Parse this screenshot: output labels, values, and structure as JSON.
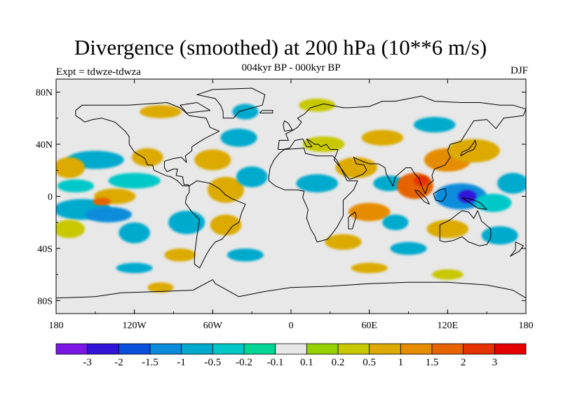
{
  "title": "Divergence (smoothed) at 200 hPa (10**6 m/s)",
  "subtitle": "004kyr BP - 000kyr BP",
  "left_label": "Expt = tdwze-tdwza",
  "right_label": "DJF",
  "map": {
    "projection": "cylindrical-equidistant",
    "lon_range": [
      -180,
      180
    ],
    "lat_range": [
      -90,
      90
    ],
    "background_color": "#e8e8e8",
    "coastline_color": "#000000",
    "lon_ticks": [
      {
        "lon": -180,
        "label": "180"
      },
      {
        "lon": -120,
        "label": "120W"
      },
      {
        "lon": -60,
        "label": "60W"
      },
      {
        "lon": 0,
        "label": "0"
      },
      {
        "lon": 60,
        "label": "60E"
      },
      {
        "lon": 120,
        "label": "120E"
      },
      {
        "lon": 180,
        "label": "180"
      }
    ],
    "lat_ticks": [
      {
        "lat": 80,
        "label": "80N"
      },
      {
        "lat": 40,
        "label": "40N"
      },
      {
        "lat": 0,
        "label": "0"
      },
      {
        "lat": -40,
        "label": "40S"
      },
      {
        "lat": -80,
        "label": "80S"
      }
    ]
  },
  "colorbar": {
    "colors": [
      "#7a16e6",
      "#3214d8",
      "#0a50dc",
      "#0a8cdc",
      "#00aacd",
      "#00c8c8",
      "#00d696",
      "#e8e8e8",
      "#96d200",
      "#c8c800",
      "#dcaa00",
      "#e68c00",
      "#e66400",
      "#e63200",
      "#e60000"
    ],
    "labels": [
      "-3",
      "-2",
      "-1.5",
      "-1",
      "-0.5",
      "-0.2",
      "-0.1",
      "0.1",
      "0.2",
      "0.5",
      "1",
      "1.5",
      "2",
      "3"
    ]
  },
  "anomaly_blobs": [
    {
      "lon": -160,
      "lat": -10,
      "rx": 22,
      "ry": 8,
      "level": 4
    },
    {
      "lon": -140,
      "lat": -14,
      "rx": 18,
      "ry": 6,
      "level": 3
    },
    {
      "lon": -165,
      "lat": 8,
      "rx": 14,
      "ry": 5,
      "level": 5
    },
    {
      "lon": -120,
      "lat": 12,
      "rx": 20,
      "ry": 6,
      "level": 5
    },
    {
      "lon": -150,
      "lat": 28,
      "rx": 22,
      "ry": 7,
      "level": 4
    },
    {
      "lon": -110,
      "lat": 30,
      "rx": 12,
      "ry": 7,
      "level": 10
    },
    {
      "lon": -170,
      "lat": 22,
      "rx": 12,
      "ry": 8,
      "level": 10
    },
    {
      "lon": -135,
      "lat": 0,
      "rx": 16,
      "ry": 6,
      "level": 10
    },
    {
      "lon": -145,
      "lat": -4,
      "rx": 7,
      "ry": 3,
      "level": 12
    },
    {
      "lon": -170,
      "lat": -25,
      "rx": 12,
      "ry": 7,
      "level": 9
    },
    {
      "lon": -120,
      "lat": -28,
      "rx": 12,
      "ry": 8,
      "level": 4
    },
    {
      "lon": -80,
      "lat": -20,
      "rx": 14,
      "ry": 9,
      "level": 4
    },
    {
      "lon": -60,
      "lat": 28,
      "rx": 14,
      "ry": 8,
      "level": 10
    },
    {
      "lon": -50,
      "lat": 5,
      "rx": 14,
      "ry": 10,
      "level": 10
    },
    {
      "lon": -30,
      "lat": 15,
      "rx": 12,
      "ry": 8,
      "level": 4
    },
    {
      "lon": -50,
      "lat": -22,
      "rx": 12,
      "ry": 8,
      "level": 10
    },
    {
      "lon": -35,
      "lat": -45,
      "rx": 14,
      "ry": 5,
      "level": 4
    },
    {
      "lon": -85,
      "lat": -45,
      "rx": 12,
      "ry": 5,
      "level": 10
    },
    {
      "lon": -40,
      "lat": 45,
      "rx": 14,
      "ry": 7,
      "level": 4
    },
    {
      "lon": -35,
      "lat": 65,
      "rx": 10,
      "ry": 6,
      "level": 4
    },
    {
      "lon": 20,
      "lat": 10,
      "rx": 16,
      "ry": 7,
      "level": 4
    },
    {
      "lon": 50,
      "lat": 22,
      "rx": 16,
      "ry": 8,
      "level": 10
    },
    {
      "lon": 25,
      "lat": 40,
      "rx": 16,
      "ry": 6,
      "level": 9
    },
    {
      "lon": 70,
      "lat": 45,
      "rx": 16,
      "ry": 6,
      "level": 10
    },
    {
      "lon": 75,
      "lat": 10,
      "rx": 12,
      "ry": 6,
      "level": 4
    },
    {
      "lon": 60,
      "lat": -12,
      "rx": 16,
      "ry": 7,
      "level": 11
    },
    {
      "lon": 80,
      "lat": -20,
      "rx": 10,
      "ry": 6,
      "level": 4
    },
    {
      "lon": 40,
      "lat": -35,
      "rx": 14,
      "ry": 6,
      "level": 10
    },
    {
      "lon": 90,
      "lat": -40,
      "rx": 14,
      "ry": 5,
      "level": 4
    },
    {
      "lon": 95,
      "lat": 8,
      "rx": 14,
      "ry": 10,
      "level": 12
    },
    {
      "lon": 100,
      "lat": 12,
      "rx": 6,
      "ry": 4,
      "level": 13
    },
    {
      "lon": 120,
      "lat": 28,
      "rx": 18,
      "ry": 9,
      "level": 11
    },
    {
      "lon": 130,
      "lat": 0,
      "rx": 20,
      "ry": 10,
      "level": 3
    },
    {
      "lon": 135,
      "lat": 0,
      "rx": 7,
      "ry": 5,
      "level": 1
    },
    {
      "lon": 155,
      "lat": -5,
      "rx": 14,
      "ry": 7,
      "level": 5
    },
    {
      "lon": 140,
      "lat": 35,
      "rx": 20,
      "ry": 9,
      "level": 10
    },
    {
      "lon": 120,
      "lat": -25,
      "rx": 16,
      "ry": 7,
      "level": 10
    },
    {
      "lon": 170,
      "lat": 10,
      "rx": 12,
      "ry": 8,
      "level": 4
    },
    {
      "lon": 160,
      "lat": -30,
      "rx": 14,
      "ry": 7,
      "level": 4
    },
    {
      "lon": 110,
      "lat": 55,
      "rx": 16,
      "ry": 6,
      "level": 4
    },
    {
      "lon": 20,
      "lat": 70,
      "rx": 14,
      "ry": 5,
      "level": 9
    },
    {
      "lon": -100,
      "lat": 65,
      "rx": 16,
      "ry": 5,
      "level": 10
    },
    {
      "lon": -120,
      "lat": -55,
      "rx": 14,
      "ry": 4,
      "level": 4
    },
    {
      "lon": -100,
      "lat": -70,
      "rx": 10,
      "ry": 4,
      "level": 10
    },
    {
      "lon": 60,
      "lat": -55,
      "rx": 14,
      "ry": 4,
      "level": 10
    },
    {
      "lon": 120,
      "lat": -60,
      "rx": 12,
      "ry": 4,
      "level": 9
    }
  ],
  "coastlines": {
    "north_america": [
      [
        -165,
        66
      ],
      [
        -160,
        70
      ],
      [
        -140,
        70
      ],
      [
        -125,
        70
      ],
      [
        -95,
        72
      ],
      [
        -85,
        68
      ],
      [
        -78,
        62
      ],
      [
        -65,
        60
      ],
      [
        -62,
        53
      ],
      [
        -55,
        50
      ],
      [
        -65,
        45
      ],
      [
        -70,
        42
      ],
      [
        -76,
        38
      ],
      [
        -76,
        35
      ],
      [
        -81,
        31
      ],
      [
        -80,
        26
      ],
      [
        -82,
        28
      ],
      [
        -84,
        30
      ],
      [
        -90,
        29
      ],
      [
        -97,
        27
      ],
      [
        -97,
        22
      ],
      [
        -95,
        19
      ],
      [
        -90,
        21
      ],
      [
        -87,
        21
      ],
      [
        -88,
        16
      ],
      [
        -83,
        15
      ],
      [
        -82,
        9
      ],
      [
        -79,
        9
      ],
      [
        -78,
        8
      ],
      [
        -83,
        8
      ],
      [
        -87,
        12
      ],
      [
        -92,
        15
      ],
      [
        -96,
        16
      ],
      [
        -105,
        20
      ],
      [
        -106,
        24
      ],
      [
        -110,
        24
      ],
      [
        -112,
        29
      ],
      [
        -115,
        31
      ],
      [
        -117,
        32
      ],
      [
        -120,
        34
      ],
      [
        -124,
        40
      ],
      [
        -124,
        46
      ],
      [
        -127,
        50
      ],
      [
        -135,
        57
      ],
      [
        -145,
        60
      ],
      [
        -152,
        59
      ],
      [
        -158,
        57
      ],
      [
        -162,
        60
      ],
      [
        -165,
        62
      ],
      [
        -165,
        66
      ]
    ],
    "south_america": [
      [
        -78,
        8
      ],
      [
        -72,
        12
      ],
      [
        -62,
        10
      ],
      [
        -55,
        6
      ],
      [
        -50,
        1
      ],
      [
        -45,
        -2
      ],
      [
        -35,
        -6
      ],
      [
        -38,
        -13
      ],
      [
        -40,
        -20
      ],
      [
        -45,
        -23
      ],
      [
        -48,
        -27
      ],
      [
        -53,
        -33
      ],
      [
        -58,
        -35
      ],
      [
        -62,
        -40
      ],
      [
        -65,
        -45
      ],
      [
        -68,
        -51
      ],
      [
        -70,
        -55
      ],
      [
        -74,
        -52
      ],
      [
        -74,
        -45
      ],
      [
        -73,
        -38
      ],
      [
        -72,
        -30
      ],
      [
        -70,
        -18
      ],
      [
        -76,
        -12
      ],
      [
        -81,
        -5
      ],
      [
        -80,
        0
      ],
      [
        -78,
        3
      ],
      [
        -78,
        8
      ]
    ],
    "africa": [
      [
        -17,
        15
      ],
      [
        -16,
        22
      ],
      [
        -13,
        28
      ],
      [
        -9,
        33
      ],
      [
        -5,
        36
      ],
      [
        10,
        37
      ],
      [
        11,
        33
      ],
      [
        20,
        31
      ],
      [
        32,
        31
      ],
      [
        35,
        28
      ],
      [
        43,
        12
      ],
      [
        51,
        12
      ],
      [
        48,
        5
      ],
      [
        40,
        -3
      ],
      [
        40,
        -10
      ],
      [
        40,
        -15
      ],
      [
        35,
        -24
      ],
      [
        32,
        -28
      ],
      [
        28,
        -33
      ],
      [
        20,
        -35
      ],
      [
        18,
        -30
      ],
      [
        15,
        -25
      ],
      [
        12,
        -17
      ],
      [
        13,
        -10
      ],
      [
        9,
        -1
      ],
      [
        10,
        4
      ],
      [
        5,
        5
      ],
      [
        -5,
        5
      ],
      [
        -12,
        8
      ],
      [
        -17,
        12
      ],
      [
        -17,
        15
      ]
    ],
    "eurasia": [
      [
        -10,
        36
      ],
      [
        -9,
        43
      ],
      [
        -2,
        43
      ],
      [
        -4,
        48
      ],
      [
        2,
        51
      ],
      [
        5,
        53
      ],
      [
        8,
        57
      ],
      [
        5,
        60
      ],
      [
        10,
        63
      ],
      [
        15,
        68
      ],
      [
        25,
        71
      ],
      [
        40,
        68
      ],
      [
        45,
        68
      ],
      [
        60,
        69
      ],
      [
        70,
        73
      ],
      [
        80,
        73
      ],
      [
        100,
        77
      ],
      [
        110,
        73
      ],
      [
        130,
        72
      ],
      [
        145,
        72
      ],
      [
        160,
        70
      ],
      [
        170,
        70
      ],
      [
        180,
        67
      ],
      [
        178,
        62
      ],
      [
        163,
        60
      ],
      [
        157,
        52
      ],
      [
        150,
        59
      ],
      [
        140,
        58
      ],
      [
        135,
        50
      ],
      [
        130,
        42
      ],
      [
        122,
        40
      ],
      [
        120,
        35
      ],
      [
        122,
        30
      ],
      [
        118,
        24
      ],
      [
        110,
        21
      ],
      [
        108,
        16
      ],
      [
        109,
        12
      ],
      [
        105,
        9
      ],
      [
        103,
        2
      ],
      [
        100,
        8
      ],
      [
        98,
        14
      ],
      [
        95,
        17
      ],
      [
        92,
        22
      ],
      [
        88,
        22
      ],
      [
        80,
        15
      ],
      [
        78,
        8
      ],
      [
        73,
        17
      ],
      [
        72,
        22
      ],
      [
        67,
        25
      ],
      [
        60,
        25
      ],
      [
        57,
        26
      ],
      [
        52,
        28
      ],
      [
        48,
        30
      ],
      [
        50,
        25
      ],
      [
        56,
        24
      ],
      [
        58,
        20
      ],
      [
        55,
        17
      ],
      [
        45,
        13
      ],
      [
        43,
        15
      ],
      [
        38,
        22
      ],
      [
        33,
        28
      ],
      [
        35,
        33
      ],
      [
        36,
        36
      ],
      [
        30,
        36
      ],
      [
        27,
        40
      ],
      [
        23,
        38
      ],
      [
        21,
        40
      ],
      [
        18,
        40
      ],
      [
        14,
        43
      ],
      [
        12,
        44
      ],
      [
        16,
        38
      ],
      [
        12,
        38
      ],
      [
        9,
        44
      ],
      [
        3,
        43
      ],
      [
        -1,
        37
      ],
      [
        -6,
        36
      ],
      [
        -10,
        36
      ]
    ],
    "australia": [
      [
        114,
        -22
      ],
      [
        114,
        -34
      ],
      [
        118,
        -35
      ],
      [
        124,
        -34
      ],
      [
        131,
        -31
      ],
      [
        136,
        -35
      ],
      [
        139,
        -36
      ],
      [
        144,
        -38
      ],
      [
        150,
        -37
      ],
      [
        153,
        -32
      ],
      [
        153,
        -25
      ],
      [
        146,
        -19
      ],
      [
        143,
        -11
      ],
      [
        140,
        -17
      ],
      [
        136,
        -12
      ],
      [
        131,
        -11
      ],
      [
        127,
        -14
      ],
      [
        122,
        -18
      ],
      [
        114,
        -22
      ]
    ],
    "greenland": [
      [
        -52,
        60
      ],
      [
        -44,
        60
      ],
      [
        -40,
        65
      ],
      [
        -22,
        70
      ],
      [
        -20,
        78
      ],
      [
        -30,
        83
      ],
      [
        -60,
        82
      ],
      [
        -72,
        78
      ],
      [
        -58,
        75
      ],
      [
        -54,
        70
      ],
      [
        -52,
        65
      ],
      [
        -52,
        60
      ]
    ],
    "antarctica": [
      [
        -180,
        -78
      ],
      [
        -150,
        -77
      ],
      [
        -130,
        -74
      ],
      [
        -100,
        -73
      ],
      [
        -75,
        -72
      ],
      [
        -60,
        -64
      ],
      [
        -58,
        -67
      ],
      [
        -40,
        -77
      ],
      [
        -20,
        -73
      ],
      [
        0,
        -70
      ],
      [
        30,
        -69
      ],
      [
        60,
        -67
      ],
      [
        90,
        -66
      ],
      [
        120,
        -66
      ],
      [
        150,
        -68
      ],
      [
        170,
        -72
      ],
      [
        180,
        -78
      ]
    ],
    "borneo": [
      [
        109,
        2
      ],
      [
        114,
        5
      ],
      [
        118,
        6
      ],
      [
        119,
        1
      ],
      [
        116,
        -4
      ],
      [
        111,
        -3
      ],
      [
        109,
        2
      ]
    ],
    "sumatra": [
      [
        95,
        5
      ],
      [
        98,
        4
      ],
      [
        104,
        -2
      ],
      [
        106,
        -6
      ],
      [
        102,
        -4
      ],
      [
        96,
        3
      ],
      [
        95,
        5
      ]
    ],
    "new_guinea": [
      [
        131,
        -1
      ],
      [
        138,
        -2
      ],
      [
        145,
        -5
      ],
      [
        150,
        -10
      ],
      [
        143,
        -9
      ],
      [
        137,
        -5
      ],
      [
        131,
        -1
      ]
    ],
    "madagascar": [
      [
        44,
        -25
      ],
      [
        47,
        -25
      ],
      [
        50,
        -15
      ],
      [
        49,
        -12
      ],
      [
        44,
        -16
      ],
      [
        44,
        -25
      ]
    ],
    "japan": [
      [
        130,
        31
      ],
      [
        135,
        34
      ],
      [
        140,
        36
      ],
      [
        142,
        40
      ],
      [
        141,
        43
      ],
      [
        140,
        41
      ],
      [
        136,
        36
      ],
      [
        131,
        34
      ],
      [
        130,
        31
      ]
    ],
    "britain": [
      [
        -5,
        50
      ],
      [
        1,
        51
      ],
      [
        -2,
        56
      ],
      [
        -5,
        58
      ],
      [
        -6,
        55
      ],
      [
        -5,
        50
      ]
    ],
    "new_zealand": [
      [
        172,
        -35
      ],
      [
        178,
        -38
      ],
      [
        175,
        -42
      ],
      [
        168,
        -46
      ],
      [
        172,
        -41
      ],
      [
        172,
        -35
      ]
    ],
    "iceland": [
      [
        -24,
        64
      ],
      [
        -14,
        64
      ],
      [
        -14,
        66
      ],
      [
        -22,
        66
      ],
      [
        -24,
        64
      ]
    ],
    "baffin": [
      [
        -80,
        64
      ],
      [
        -62,
        66
      ],
      [
        -72,
        72
      ],
      [
        -85,
        70
      ],
      [
        -80,
        64
      ]
    ]
  }
}
